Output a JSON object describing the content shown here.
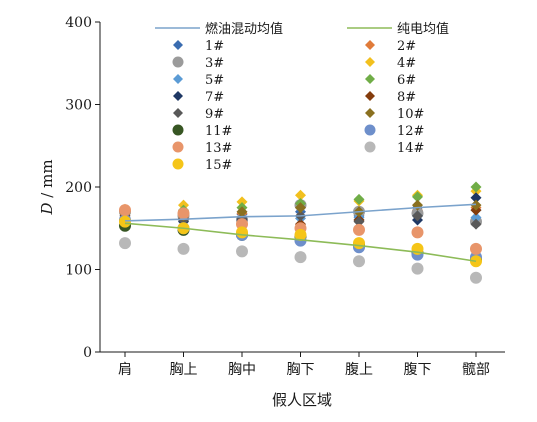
{
  "chart_data": {
    "type": "scatter",
    "title": "",
    "xlabel": "假人区域",
    "ylabel_var": "D",
    "ylabel_unit": " / mm",
    "ylim": [
      0,
      400
    ],
    "yticks": [
      "0",
      "100",
      "200",
      "300",
      "400"
    ],
    "categories": [
      "肩",
      "胸上",
      "胸中",
      "胸下",
      "腹上",
      "腹下",
      "髋部"
    ],
    "legend_position": "top",
    "grid": false,
    "lines": [
      {
        "name": "燃油混动均值",
        "color": "#7ba3cc",
        "values": [
          159,
          161,
          164,
          165,
          170,
          175,
          179
        ]
      },
      {
        "name": "纯电均值",
        "color": "#8dbb58",
        "values": [
          156,
          150,
          142,
          136,
          129,
          121,
          110
        ]
      }
    ],
    "series": [
      {
        "name": "1#",
        "marker": "diamond",
        "color": "#3a6cb0",
        "values": [
          168,
          162,
          167,
          170,
          165,
          175,
          172
        ]
      },
      {
        "name": "2#",
        "marker": "diamond",
        "color": "#e07b39",
        "values": [
          172,
          170,
          168,
          165,
          168,
          172,
          175
        ]
      },
      {
        "name": "3#",
        "marker": "circle",
        "color": "#9b9b9b",
        "values": [
          170,
          165,
          160,
          178,
          170,
          168,
          158
        ]
      },
      {
        "name": "4#",
        "marker": "diamond",
        "color": "#f2c01e",
        "values": [
          173,
          178,
          182,
          190,
          183,
          190,
          195
        ]
      },
      {
        "name": "5#",
        "marker": "diamond",
        "color": "#5b9bd5",
        "values": [
          165,
          160,
          162,
          162,
          163,
          165,
          163
        ]
      },
      {
        "name": "6#",
        "marker": "diamond",
        "color": "#70ad47",
        "values": [
          170,
          172,
          175,
          180,
          185,
          188,
          200
        ]
      },
      {
        "name": "7#",
        "marker": "diamond",
        "color": "#1f3864",
        "values": [
          162,
          158,
          160,
          150,
          160,
          160,
          187
        ]
      },
      {
        "name": "8#",
        "marker": "diamond",
        "color": "#843c0c",
        "values": [
          165,
          162,
          158,
          155,
          160,
          145,
          172
        ]
      },
      {
        "name": "9#",
        "marker": "diamond",
        "color": "#595959",
        "values": [
          163,
          160,
          162,
          165,
          158,
          165,
          155
        ]
      },
      {
        "name": "10#",
        "marker": "diamond",
        "color": "#8a7020",
        "values": [
          168,
          165,
          170,
          175,
          170,
          178,
          178
        ]
      },
      {
        "name": "11#",
        "marker": "circle",
        "color": "#375623",
        "values": [
          153,
          148,
          142,
          140,
          130,
          120,
          112
        ]
      },
      {
        "name": "12#",
        "marker": "circle",
        "color": "#6e8fcb",
        "values": [
          160,
          150,
          142,
          135,
          127,
          118,
          115
        ]
      },
      {
        "name": "13#",
        "marker": "circle",
        "color": "#e8956a",
        "values": [
          172,
          168,
          155,
          150,
          148,
          145,
          125
        ]
      },
      {
        "name": "14#",
        "marker": "circle",
        "color": "#b8b8b8",
        "values": [
          132,
          125,
          122,
          115,
          110,
          101,
          90
        ]
      },
      {
        "name": "15#",
        "marker": "circle",
        "color": "#f5c518",
        "values": [
          158,
          150,
          145,
          142,
          132,
          125,
          110
        ]
      }
    ]
  }
}
